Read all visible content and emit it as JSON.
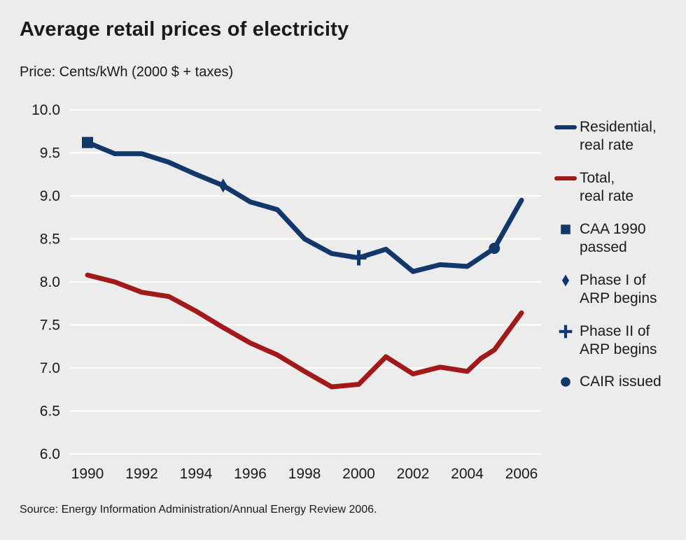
{
  "title": "Average retail prices of electricity",
  "subtitle": "Price: Cents/kWh (2000 $ + taxes)",
  "source": "Source: Energy Information Administration/Annual Energy Review 2006.",
  "colors": {
    "residential": "#12376b",
    "total": "#a21919",
    "grid": "#ffffff",
    "background": "#ececec"
  },
  "chart_data": {
    "type": "line",
    "ylim": [
      6.0,
      10.0
    ],
    "xlim": [
      1990,
      2006
    ],
    "yticks": [
      "6.0",
      "6.5",
      "7.0",
      "7.5",
      "8.0",
      "8.5",
      "9.0",
      "9.5",
      "10.0"
    ],
    "xticks": [
      "1990",
      "1992",
      "1994",
      "1996",
      "1998",
      "2000",
      "2002",
      "2004",
      "2006"
    ],
    "grid": "horizontal",
    "legend_position": "right",
    "series": [
      {
        "name": "Residential, real rate",
        "color": "#12376b",
        "x": [
          1990,
          1991,
          1992,
          1993,
          1994,
          1995,
          1996,
          1997,
          1998,
          1999,
          2000,
          2001,
          2002,
          2003,
          2004,
          2005,
          2006
        ],
        "values": [
          9.62,
          9.49,
          9.49,
          9.39,
          9.25,
          9.12,
          8.93,
          8.84,
          8.5,
          8.33,
          8.28,
          8.38,
          8.12,
          8.2,
          8.18,
          8.39,
          8.95
        ]
      },
      {
        "name": "Total, real rate",
        "color": "#a21919",
        "x": [
          1990,
          1991,
          1992,
          1993,
          1994,
          1995,
          1996,
          1997,
          1998,
          1999,
          2000,
          2001,
          2002,
          2003,
          2004,
          2004.5,
          2005,
          2006
        ],
        "values": [
          8.08,
          8.0,
          7.88,
          7.83,
          7.66,
          7.47,
          7.29,
          7.15,
          6.96,
          6.78,
          6.81,
          7.13,
          6.93,
          7.01,
          6.96,
          7.11,
          7.21,
          7.64
        ]
      }
    ],
    "markers": [
      {
        "name": "CAA 1990 passed",
        "shape": "square",
        "x": 1990,
        "y": 9.62
      },
      {
        "name": "Phase I of ARP begins",
        "shape": "diamond",
        "x": 1995,
        "y": 9.12
      },
      {
        "name": "Phase II of ARP begins",
        "shape": "plus",
        "x": 2000,
        "y": 8.28
      },
      {
        "name": "CAIR issued",
        "shape": "circle",
        "x": 2005,
        "y": 8.39
      }
    ],
    "legend": [
      {
        "lines": [
          "Residential,",
          "real rate"
        ],
        "kind": "line",
        "color": "#12376b"
      },
      {
        "lines": [
          "Total,",
          "real rate"
        ],
        "kind": "line",
        "color": "#a21919"
      },
      {
        "lines": [
          "CAA 1990",
          "passed"
        ],
        "kind": "square",
        "color": "#12376b"
      },
      {
        "lines": [
          "Phase I of",
          "ARP begins"
        ],
        "kind": "diamond",
        "color": "#12376b"
      },
      {
        "lines": [
          "Phase II of",
          "ARP begins"
        ],
        "kind": "plus",
        "color": "#12376b"
      },
      {
        "lines": [
          "CAIR issued"
        ],
        "kind": "circle",
        "color": "#12376b"
      }
    ]
  }
}
